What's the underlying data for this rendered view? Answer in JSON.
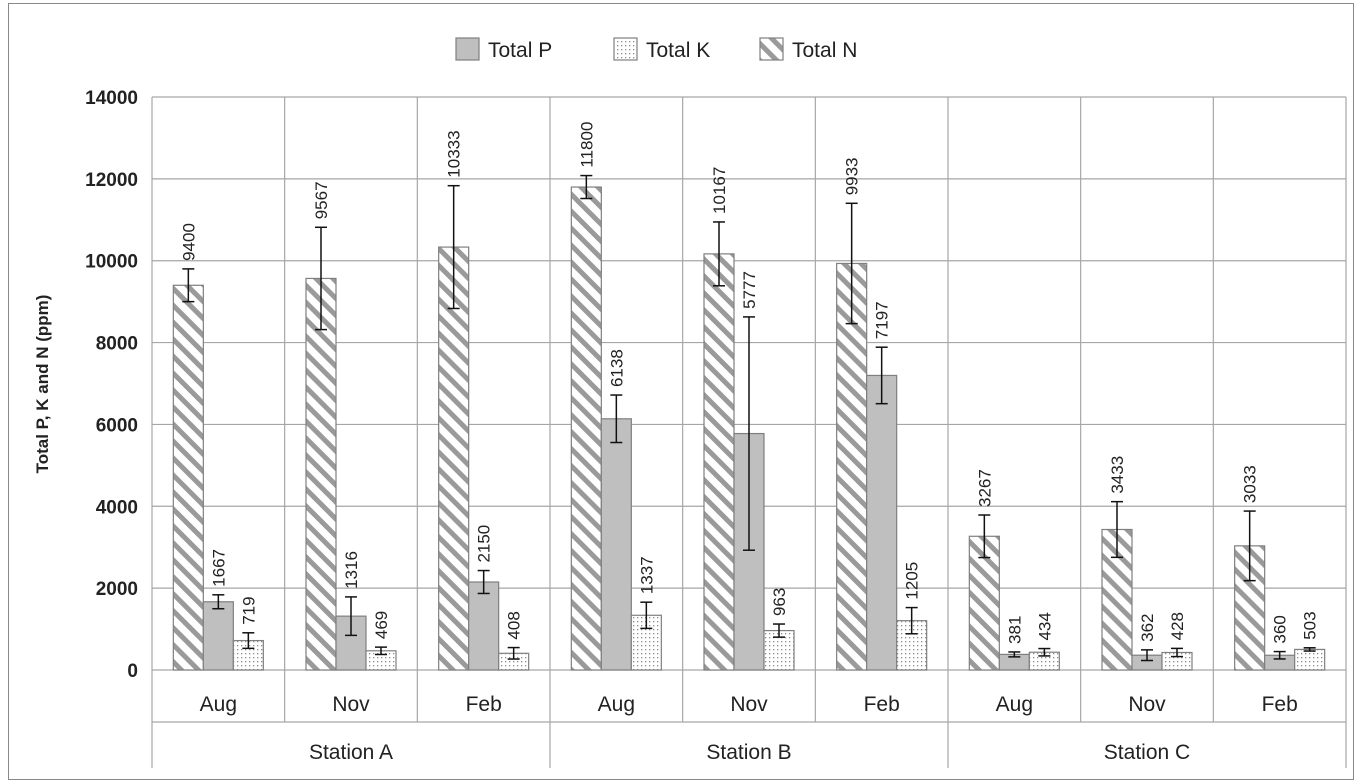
{
  "chart_data": {
    "type": "bar",
    "title": "",
    "ylabel": "Total P, K and N (ppm)",
    "xlabel": "",
    "ylim": [
      0,
      14000
    ],
    "yticks": [
      0,
      2000,
      4000,
      6000,
      8000,
      10000,
      12000,
      14000
    ],
    "grid": true,
    "legend_position": "top",
    "groups": [
      "Station A",
      "Station B",
      "Station C"
    ],
    "categories": [
      "Aug",
      "Nov",
      "Feb",
      "Aug",
      "Nov",
      "Feb",
      "Aug",
      "Nov",
      "Feb"
    ],
    "series": [
      {
        "name": "Total N",
        "pattern": "diagonal-hatch",
        "values": [
          9400,
          9567,
          10333,
          11800,
          10167,
          9933,
          3267,
          3433,
          3033
        ],
        "labels": [
          "9400",
          "9567",
          "10333",
          "11800",
          "10167",
          "9933",
          "3267",
          "3433",
          "3033"
        ],
        "errors": [
          400,
          1250,
          1500,
          280,
          780,
          1470,
          520,
          680,
          850
        ]
      },
      {
        "name": "Total P",
        "pattern": "solid-gray",
        "values": [
          1667,
          1316,
          2150,
          6138,
          5777,
          7197,
          381,
          362,
          360
        ],
        "labels": [
          "1667",
          "1316",
          "2150",
          "6138",
          "5777",
          "7197",
          "381",
          "362",
          "360"
        ],
        "errors": [
          170,
          470,
          280,
          580,
          2850,
          690,
          60,
          130,
          90
        ]
      },
      {
        "name": "Total K",
        "pattern": "dotted",
        "values": [
          719,
          469,
          408,
          1337,
          963,
          1205,
          434,
          428,
          503
        ],
        "labels": [
          "719",
          "469",
          "408",
          "1337",
          "963",
          "1205",
          "434",
          "428",
          "503"
        ],
        "errors": [
          190,
          90,
          140,
          320,
          160,
          320,
          90,
          100,
          40
        ]
      }
    ],
    "legend_order": [
      "Total P",
      "Total K",
      "Total N"
    ],
    "colors": {
      "p_fill": "#bfbfbf",
      "bar_border": "#7f7f7f",
      "hatch": "#9a9a9a",
      "dots": "#8c8c8c",
      "grid": "#a6a6a6",
      "text": "#222222"
    }
  }
}
